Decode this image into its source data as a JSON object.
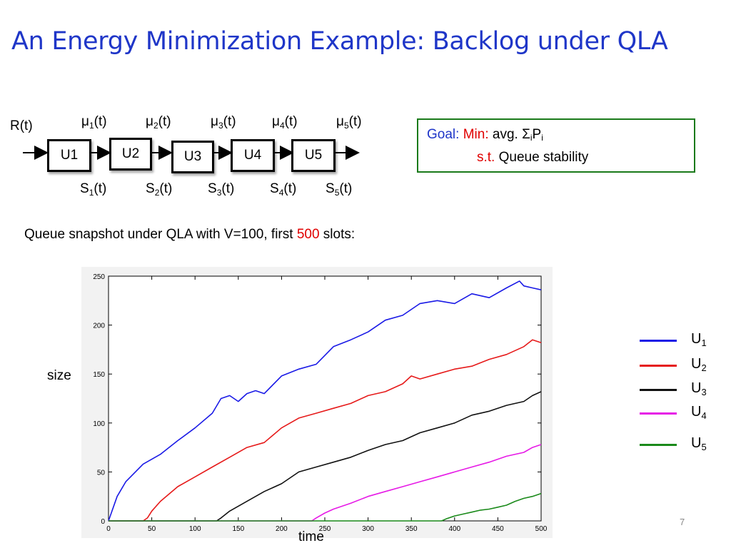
{
  "slide": {
    "title": "An Energy Minimization Example: Backlog under QLA",
    "page_number": "7"
  },
  "network": {
    "input_label": "R(t)",
    "units": [
      "U1",
      "U2",
      "U3",
      "U4",
      "U5"
    ],
    "mu_labels": [
      {
        "base": "μ",
        "sub": "1",
        "tail": "(t)"
      },
      {
        "base": "μ",
        "sub": "2",
        "tail": "(t)"
      },
      {
        "base": "μ",
        "sub": "3",
        "tail": "(t)"
      },
      {
        "base": "μ",
        "sub": "4",
        "tail": "(t)"
      },
      {
        "base": "μ",
        "sub": "5",
        "tail": "(t)"
      }
    ],
    "s_labels": [
      {
        "base": "S",
        "sub": "1",
        "tail": "(t)"
      },
      {
        "base": "S",
        "sub": "2",
        "tail": "(t)"
      },
      {
        "base": "S",
        "sub": "3",
        "tail": "(t)"
      },
      {
        "base": "S",
        "sub": "4",
        "tail": "(t)"
      },
      {
        "base": "S",
        "sub": "5",
        "tail": "(t)"
      }
    ]
  },
  "goal": {
    "goal_label": "Goal:",
    "min_label": "Min:",
    "objective_pre": "avg. Σ",
    "objective_sub1": "i",
    "objective_mid": "P",
    "objective_sub2": "i",
    "st_label": "s.t.",
    "constraint": "Queue stability"
  },
  "caption": {
    "pre": "Queue snapshot under QLA with V=100, first ",
    "highlight": "500",
    "post": " slots:"
  },
  "colors": {
    "title": "#1f36c8",
    "goal_border": "#1a7a1a",
    "highlight_red": "#e00000"
  },
  "chart_data": {
    "type": "line",
    "xlabel": "time",
    "ylabel": "size",
    "xlim": [
      0,
      500
    ],
    "ylim": [
      0,
      250
    ],
    "xticks": [
      0,
      50,
      100,
      150,
      200,
      250,
      300,
      350,
      400,
      450,
      500
    ],
    "yticks": [
      0,
      50,
      100,
      150,
      200,
      250
    ],
    "grid": false,
    "legend_position": "right",
    "series": [
      {
        "name": "U1",
        "sub": "1",
        "color": "#1a1ae6",
        "x": [
          0,
          10,
          20,
          40,
          60,
          80,
          100,
          120,
          130,
          140,
          150,
          160,
          170,
          180,
          200,
          220,
          240,
          260,
          280,
          300,
          320,
          340,
          360,
          380,
          400,
          420,
          440,
          460,
          475,
          480,
          490,
          500
        ],
        "y": [
          0,
          25,
          40,
          58,
          68,
          82,
          95,
          110,
          125,
          128,
          122,
          130,
          133,
          130,
          148,
          155,
          160,
          178,
          185,
          193,
          205,
          210,
          222,
          225,
          222,
          232,
          228,
          238,
          245,
          240,
          238,
          236
        ]
      },
      {
        "name": "U2",
        "sub": "2",
        "color": "#e61a1a",
        "x": [
          0,
          40,
          45,
          50,
          60,
          80,
          100,
          120,
          140,
          160,
          180,
          200,
          220,
          240,
          260,
          280,
          300,
          320,
          340,
          350,
          360,
          380,
          400,
          420,
          440,
          460,
          480,
          490,
          500
        ],
        "y": [
          0,
          0,
          3,
          10,
          20,
          35,
          45,
          55,
          65,
          75,
          80,
          95,
          105,
          110,
          115,
          120,
          128,
          132,
          140,
          148,
          145,
          150,
          155,
          158,
          165,
          170,
          178,
          185,
          182
        ]
      },
      {
        "name": "U3",
        "sub": "3",
        "color": "#111111",
        "x": [
          0,
          125,
          130,
          140,
          160,
          180,
          200,
          220,
          240,
          260,
          280,
          300,
          320,
          340,
          360,
          380,
          400,
          420,
          440,
          460,
          480,
          490,
          500
        ],
        "y": [
          0,
          0,
          3,
          10,
          20,
          30,
          38,
          50,
          55,
          60,
          65,
          72,
          78,
          82,
          90,
          95,
          100,
          108,
          112,
          118,
          122,
          128,
          132
        ]
      },
      {
        "name": "U4",
        "sub": "4",
        "color": "#e61ae6",
        "x": [
          0,
          235,
          240,
          250,
          260,
          280,
          300,
          320,
          340,
          360,
          380,
          400,
          420,
          440,
          460,
          480,
          490,
          500
        ],
        "y": [
          0,
          0,
          3,
          8,
          12,
          18,
          25,
          30,
          35,
          40,
          45,
          50,
          55,
          60,
          66,
          70,
          75,
          78
        ]
      },
      {
        "name": "U5",
        "sub": "5",
        "color": "#1a8a1a",
        "x": [
          0,
          385,
          390,
          400,
          410,
          420,
          430,
          440,
          450,
          460,
          470,
          480,
          490,
          500
        ],
        "y": [
          0,
          0,
          2,
          5,
          7,
          9,
          11,
          12,
          14,
          16,
          20,
          23,
          25,
          28
        ]
      }
    ]
  }
}
